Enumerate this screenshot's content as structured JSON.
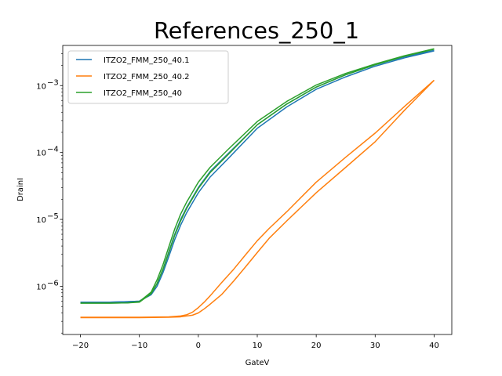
{
  "chart_data": {
    "type": "line",
    "title": "References_250_1",
    "xlabel": "GateV",
    "ylabel": "DrainI",
    "xlim": [
      -23,
      43
    ],
    "ylim_log10": [
      -6.72,
      -2.4
    ],
    "yscale": "log",
    "grid": false,
    "legend_position": "upper left",
    "x_ticks": [
      -20,
      -10,
      0,
      10,
      20,
      30,
      40
    ],
    "x_tick_labels": [
      "−20",
      "−10",
      "0",
      "10",
      "20",
      "30",
      "40"
    ],
    "y_ticks_exp": [
      -6,
      -5,
      -4,
      -3
    ],
    "y_tick_base": "10",
    "y_tick_exponents": [
      "−6",
      "−5",
      "−4",
      "−3"
    ],
    "series": [
      {
        "name": "ITZO2_FMM_250_40.1",
        "color": "#1f77b4",
        "sweeps": [
          [
            [
              -20,
              5.8e-07
            ],
            [
              -15,
              5.8e-07
            ],
            [
              -12,
              5.9e-07
            ],
            [
              -10,
              6e-07
            ],
            [
              -8,
              7.5e-07
            ],
            [
              -7,
              1e-06
            ],
            [
              -6,
              1.6e-06
            ],
            [
              -5,
              2.8e-06
            ],
            [
              -4,
              5e-06
            ],
            [
              -3,
              8.2e-06
            ],
            [
              -2,
              1.25e-05
            ],
            [
              0,
              2.5e-05
            ],
            [
              2,
              4.3e-05
            ],
            [
              5,
              8e-05
            ],
            [
              10,
              0.00023
            ],
            [
              15,
              0.00048
            ],
            [
              20,
              0.00088
            ],
            [
              25,
              0.00135
            ],
            [
              30,
              0.00195
            ],
            [
              35,
              0.0026
            ],
            [
              40,
              0.0033
            ]
          ],
          [
            [
              40,
              0.00335
            ],
            [
              35,
              0.0027
            ],
            [
              30,
              0.00205
            ],
            [
              25,
              0.00145
            ],
            [
              20,
              0.00095
            ],
            [
              15,
              0.00053
            ],
            [
              10,
              0.00026
            ],
            [
              5,
              9.5e-05
            ],
            [
              2,
              5.2e-05
            ],
            [
              0,
              3e-05
            ],
            [
              -2,
              1.5e-05
            ],
            [
              -3,
              1e-05
            ],
            [
              -4,
              6e-06
            ],
            [
              -5,
              3.3e-06
            ],
            [
              -6,
              1.8e-06
            ],
            [
              -7,
              1.1e-06
            ],
            [
              -8,
              7.8e-07
            ],
            [
              -10,
              6e-07
            ],
            [
              -12,
              5.9e-07
            ],
            [
              -15,
              5.8e-07
            ],
            [
              -20,
              5.8e-07
            ]
          ]
        ]
      },
      {
        "name": "ITZO2_FMM_250_40.2",
        "color": "#ff7f0e",
        "sweeps": [
          [
            [
              -20,
              3.4e-07
            ],
            [
              -10,
              3.4e-07
            ],
            [
              -5,
              3.45e-07
            ],
            [
              -3,
              3.5e-07
            ],
            [
              -1,
              3.7e-07
            ],
            [
              0,
              4e-07
            ],
            [
              1,
              4.6e-07
            ],
            [
              2,
              5.4e-07
            ],
            [
              4,
              7.6e-07
            ],
            [
              6,
              1.2e-06
            ],
            [
              8,
              1.95e-06
            ],
            [
              10,
              3.2e-06
            ],
            [
              12,
              5.2e-06
            ],
            [
              15,
              9.5e-06
            ],
            [
              20,
              2.5e-05
            ],
            [
              25,
              6e-05
            ],
            [
              30,
              0.000145
            ],
            [
              35,
              0.00043
            ],
            [
              40,
              0.0012
            ]
          ],
          [
            [
              40,
              0.0012
            ],
            [
              35,
              0.00049
            ],
            [
              30,
              0.000195
            ],
            [
              25,
              8.5e-05
            ],
            [
              20,
              3.6e-05
            ],
            [
              15,
              1.3e-05
            ],
            [
              12,
              7.3e-06
            ],
            [
              10,
              4.8e-06
            ],
            [
              8,
              2.95e-06
            ],
            [
              6,
              1.8e-06
            ],
            [
              4,
              1.15e-06
            ],
            [
              2,
              7.2e-07
            ],
            [
              1,
              5.8e-07
            ],
            [
              0,
              4.8e-07
            ],
            [
              -1,
              4.1e-07
            ],
            [
              -2,
              3.75e-07
            ],
            [
              -3,
              3.6e-07
            ],
            [
              -5,
              3.5e-07
            ],
            [
              -10,
              3.45e-07
            ],
            [
              -20,
              3.45e-07
            ]
          ]
        ]
      },
      {
        "name": "ITZO2_FMM_250_40",
        "color": "#2ca02c",
        "sweeps": [
          [
            [
              -20,
              5.6e-07
            ],
            [
              -15,
              5.6e-07
            ],
            [
              -12,
              5.65e-07
            ],
            [
              -10,
              5.8e-07
            ],
            [
              -8,
              7.8e-07
            ],
            [
              -7,
              1.1e-06
            ],
            [
              -6,
              1.8e-06
            ],
            [
              -5,
              3.2e-06
            ],
            [
              -4,
              5.8e-06
            ],
            [
              -3,
              9.5e-06
            ],
            [
              -2,
              1.45e-05
            ],
            [
              0,
              2.9e-05
            ],
            [
              2,
              5e-05
            ],
            [
              5,
              9.2e-05
            ],
            [
              10,
              0.00026
            ],
            [
              15,
              0.00053
            ],
            [
              20,
              0.00095
            ],
            [
              25,
              0.00145
            ],
            [
              30,
              0.00205
            ],
            [
              35,
              0.00275
            ],
            [
              40,
              0.0035
            ]
          ],
          [
            [
              40,
              0.00355
            ],
            [
              35,
              0.0028
            ],
            [
              30,
              0.0021
            ],
            [
              25,
              0.00152
            ],
            [
              20,
              0.00102
            ],
            [
              15,
              0.00058
            ],
            [
              10,
              0.00029
            ],
            [
              5,
              0.00011
            ],
            [
              2,
              6e-05
            ],
            [
              0,
              3.6e-05
            ],
            [
              -2,
              1.8e-05
            ],
            [
              -3,
              1.2e-05
            ],
            [
              -4,
              7.2e-06
            ],
            [
              -5,
              3.9e-06
            ],
            [
              -6,
              2.1e-06
            ],
            [
              -7,
              1.25e-06
            ],
            [
              -8,
              8.2e-07
            ],
            [
              -10,
              5.9e-07
            ],
            [
              -12,
              5.65e-07
            ],
            [
              -15,
              5.6e-07
            ],
            [
              -20,
              5.6e-07
            ]
          ]
        ]
      }
    ]
  }
}
